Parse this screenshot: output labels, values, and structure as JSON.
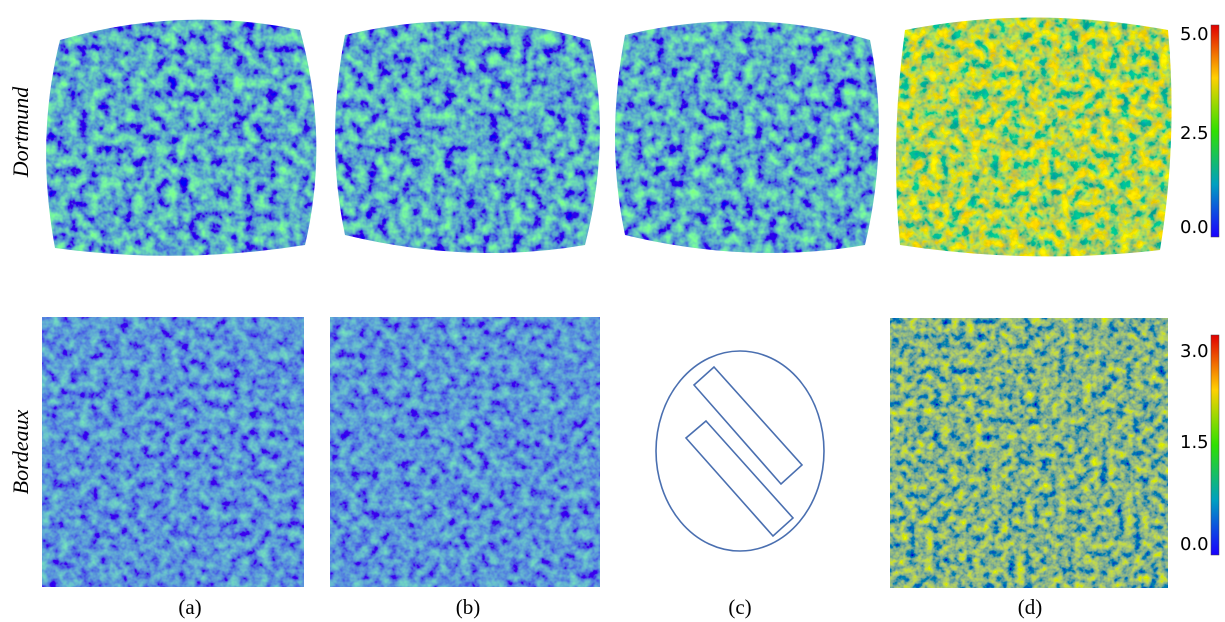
{
  "figure": {
    "row_labels": [
      "Dortmund",
      "Bordeaux"
    ],
    "column_labels": [
      "(a)",
      "(b)",
      "(c)",
      "(d)"
    ],
    "colorbars": [
      {
        "ticks": [
          "5.0",
          "2.5",
          "0.0"
        ]
      },
      {
        "ticks": [
          "3.0",
          "1.5",
          "0.0"
        ]
      }
    ]
  }
}
